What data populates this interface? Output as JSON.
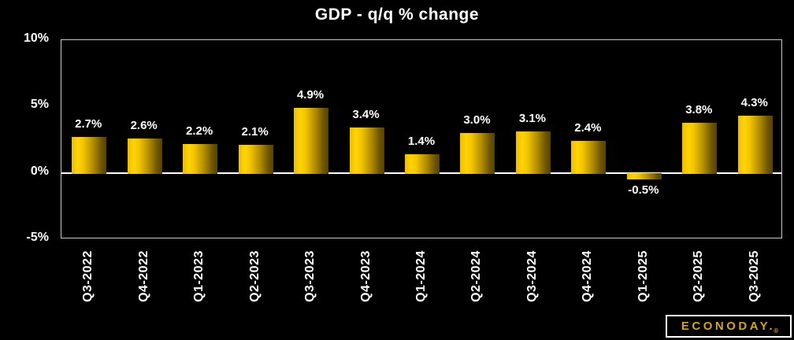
{
  "chart_data": {
    "type": "bar",
    "title": "GDP - q/q % change",
    "categories": [
      "Q3-2022",
      "Q4-2022",
      "Q1-2023",
      "Q2-2023",
      "Q3-2023",
      "Q4-2023",
      "Q1-2024",
      "Q2-2024",
      "Q3-2024",
      "Q4-2024",
      "Q1-2025",
      "Q2-2025",
      "Q3-2025"
    ],
    "values": [
      2.7,
      2.6,
      2.2,
      2.1,
      4.9,
      3.4,
      1.4,
      3.0,
      3.1,
      2.4,
      -0.5,
      3.8,
      4.3
    ],
    "value_labels": [
      "2.7%",
      "2.6%",
      "2.2%",
      "2.1%",
      "4.9%",
      "3.4%",
      "1.4%",
      "3.0%",
      "3.1%",
      "2.4%",
      "-0.5%",
      "3.8%",
      "4.3%"
    ],
    "yticks": [
      {
        "value": 10,
        "label": "10%"
      },
      {
        "value": 5,
        "label": "5%"
      },
      {
        "value": 0,
        "label": "0%"
      },
      {
        "value": -5,
        "label": "-5%"
      }
    ],
    "ylim": [
      -5,
      10
    ],
    "xlabel": "",
    "ylabel": "",
    "grid": false,
    "legend_position": "none",
    "colors": {
      "background": "#000000",
      "bar_bright": "#ffd405",
      "bar_dark": "#544200",
      "title_text": "#ffffff",
      "axis_text": "#ffffff",
      "plot_border": "#c8c8c8",
      "zero_line": "#ffffff"
    }
  },
  "branding": {
    "logo_text": "ECONODAY.",
    "registered_mark": "®",
    "logo_text_color": "#d2a42a",
    "logo_border_color": "#ffffff"
  }
}
